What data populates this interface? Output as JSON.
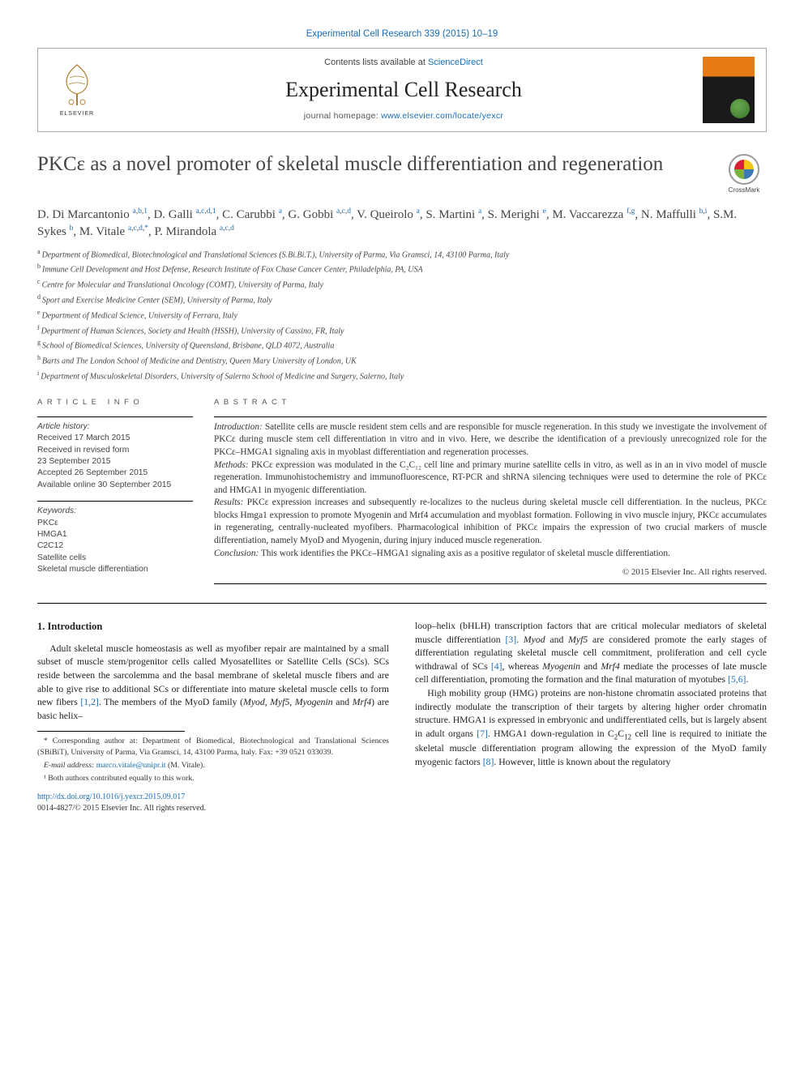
{
  "top_link_text": "Experimental Cell Research 339 (2015) 10–19",
  "header": {
    "contents_prefix": "Contents lists available at ",
    "contents_link": "ScienceDirect",
    "journal": "Experimental Cell Research",
    "homepage_prefix": "journal homepage: ",
    "homepage_link": "www.elsevier.com/locate/yexcr",
    "publisher": "ELSEVIER"
  },
  "title": "PKCε as a novel promoter of skeletal muscle differentiation and regeneration",
  "crossmark_label": "CrossMark",
  "authors_html": "D. Di Marcantonio <sup><a>a</a>,<a>b</a>,<span class='sym'>1</span></sup>, D. Galli <sup><a>a</a>,<a>c</a>,<a>d</a>,<span class='sym'>1</span></sup>, C. Carubbi <sup><a>a</a></sup>, G. Gobbi <sup><a>a</a>,<a>c</a>,<a>d</a></sup>, V. Queirolo <sup><a>a</a></sup>, S. Martini <sup><a>a</a></sup>, S. Merighi <sup><a>e</a></sup>, M. Vaccarezza <sup><a>f</a>,<a>g</a></sup>, N. Maffulli <sup><a>h</a>,<a>i</a></sup>, S.M. Sykes <sup><a>b</a></sup>, M. Vitale <sup><a>a</a>,<a>c</a>,<a>d</a>,<span class='sym'>*</span></sup>, P. Mirandola <sup><a>a</a>,<a>c</a>,<a>d</a></sup>",
  "affiliations": [
    {
      "key": "a",
      "text": "Department of Biomedical, Biotechnological and Translational Sciences (S.Bi.Bi.T.), University of Parma, Via Gramsci, 14, 43100 Parma, Italy"
    },
    {
      "key": "b",
      "text": "Immune Cell Development and Host Defense, Research Institute of Fox Chase Cancer Center, Philadelphia, PA, USA"
    },
    {
      "key": "c",
      "text": "Centre for Molecular and Translational Oncology (COMT), University of Parma, Italy"
    },
    {
      "key": "d",
      "text": "Sport and Exercise Medicine Center (SEM), University of Parma, Italy"
    },
    {
      "key": "e",
      "text": "Department of Medical Science, University of Ferrara, Italy"
    },
    {
      "key": "f",
      "text": "Department of Human Sciences, Society and Health (HSSH), University of Cassino, FR, Italy"
    },
    {
      "key": "g",
      "text": "School of Biomedical Sciences, University of Queensland, Brisbane, QLD 4072, Australia"
    },
    {
      "key": "h",
      "text": "Barts and The London School of Medicine and Dentistry, Queen Mary University of London, UK"
    },
    {
      "key": "i",
      "text": "Department of Musculoskeletal Disorders, University of Salerno School of Medicine and Surgery, Salerno, Italy"
    }
  ],
  "article_info": {
    "label": "ARTICLE INFO",
    "history_label": "Article history:",
    "history": [
      "Received 17 March 2015",
      "Received in revised form",
      "23 September 2015",
      "Accepted 26 September 2015",
      "Available online 30 September 2015"
    ],
    "keywords_label": "Keywords:",
    "keywords": [
      "PKCε",
      "HMGA1",
      "C2C12",
      "Satellite cells",
      "Skeletal muscle differentiation"
    ]
  },
  "abstract": {
    "label": "ABSTRACT",
    "intro_lead": "Introduction:",
    "intro": " Satellite cells are muscle resident stem cells and are responsible for muscle regeneration. In this study we investigate the involvement of PKCε during muscle stem cell differentiation in vitro and in vivo. Here, we describe the identification of a previously unrecognized role for the PKCε–HMGA1 signaling axis in myoblast differentiation and regeneration processes.",
    "methods_lead": "Methods:",
    "methods": " PKCε expression was modulated in the C₂C₁₂ cell line and primary murine satellite cells in vitro, as well as in an in vivo model of muscle regeneration. Immunohistochemistry and immunofluorescence, RT-PCR and shRNA silencing techniques were used to determine the role of PKCε and HMGA1 in myogenic differentiation.",
    "results_lead": "Results:",
    "results": " PKCε expression increases and subsequently re-localizes to the nucleus during skeletal muscle cell differentiation. In the nucleus, PKCε blocks Hmga1 expression to promote Myogenin and Mrf4 accumulation and myoblast formation. Following in vivo muscle injury, PKCε accumulates in regenerating, centrally-nucleated myofibers. Pharmacological inhibition of PKCε impairs the expression of two crucial markers of muscle differentiation, namely MyoD and Myogenin, during injury induced muscle regeneration.",
    "conclusion_lead": "Conclusion:",
    "conclusion": " This work identifies the PKCε–HMGA1 signaling axis as a positive regulator of skeletal muscle differentiation.",
    "copyright": "© 2015 Elsevier Inc. All rights reserved."
  },
  "section1": {
    "heading": "1.  Introduction",
    "col1_html": "Adult skeletal muscle homeostasis as well as myofiber repair are maintained by a small subset of muscle stem/progenitor cells called Myosatellites or Satellite Cells (SCs). SCs reside between the sarcolemma and the basal membrane of skeletal muscle fibers and are able to give rise to additional SCs or differentiate into mature skeletal muscle cells to form new fibers <a class='ref'>[1,2]</a>. The members of the MyoD family (<i>Myod</i>, <i>Myf5</i>, <i>Myogenin</i> and <i>Mrf4</i>) are basic helix–",
    "col2_p1_html": "loop–helix (bHLH) transcription factors that are critical molecular mediators of skeletal muscle differentiation <a class='ref'>[3]</a>. <i>Myod</i> and <i>Myf5</i> are considered promote the early stages of differentiation regulating skeletal muscle cell commitment, proliferation and cell cycle withdrawal of SCs <a class='ref'>[4]</a>, whereas <i>Myogenin</i> and <i>Mrf4</i> mediate the processes of late muscle cell differentiation, promoting the formation and the final maturation of myotubes <a class='ref'>[5,6]</a>.",
    "col2_p2_html": "High mobility group (HMG) proteins are non-histone chromatin associated proteins that indirectly modulate the transcription of their targets by altering higher order chromatin structure. HMGA1 is expressed in embryonic and undifferentiated cells, but is largely absent in adult organs <a class='ref'>[7]</a>. HMGA1 down-regulation in C<span class='sub'>2</span>C<span class='sub'>12</span> cell line is required to initiate the skeletal muscle differentiation program allowing the expression of the MyoD family myogenic factors <a class='ref'>[8]</a>. However, little is known about the regulatory"
  },
  "footnotes": {
    "corr": "* Corresponding author at: Department of Biomedical, Biotechnological and Translational Sciences (SBiBiT), University of Parma, Via Gramsci, 14, 43100 Parma, Italy. Fax: +39 0521 033039.",
    "email_label": "E-mail address: ",
    "email": "marco.vitale@unipr.it",
    "email_who": " (M. Vitale).",
    "equal": "¹ Both authors contributed equally to this work."
  },
  "doi": "http://dx.doi.org/10.1016/j.yexcr.2015.09.017",
  "issn": "0014-4827/© 2015 Elsevier Inc. All rights reserved.",
  "colors": {
    "link": "#1a6db5",
    "text": "#222",
    "muted": "#555",
    "orange": "#e67a15"
  }
}
